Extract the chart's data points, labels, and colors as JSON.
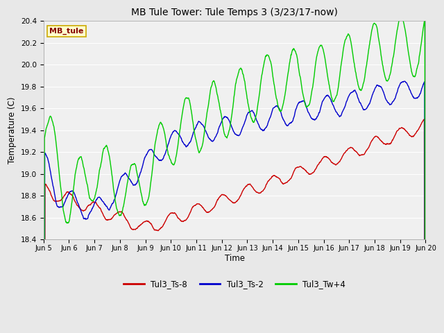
{
  "title": "MB Tule Tower: Tule Temps 3 (3/23/17-now)",
  "xlabel": "Time",
  "ylabel": "Temperature (C)",
  "ylim": [
    18.4,
    20.4
  ],
  "background_color": "#e8e8e8",
  "plot_bg_color": "#f0f0f0",
  "grid_color": "#ffffff",
  "legend_label": "MB_tule",
  "legend_box_color": "#ffffcc",
  "legend_box_edge": "#ccaa00",
  "x_tick_labels": [
    "Jun 5",
    "Jun 6",
    "Jun 7",
    "Jun 8",
    "Jun 9",
    "Jun 10",
    "Jun 11",
    "Jun 12",
    "Jun 13",
    "Jun 14",
    "Jun 15",
    "Jun 16",
    "Jun 17",
    "Jun 18",
    "Jun 19",
    "Jun 20"
  ],
  "series": [
    {
      "name": "Tul3_Ts-8",
      "color": "#cc0000",
      "linewidth": 1.0
    },
    {
      "name": "Tul3_Ts-2",
      "color": "#0000cc",
      "linewidth": 1.0
    },
    {
      "name": "Tul3_Tw+4",
      "color": "#00cc00",
      "linewidth": 1.0
    }
  ]
}
